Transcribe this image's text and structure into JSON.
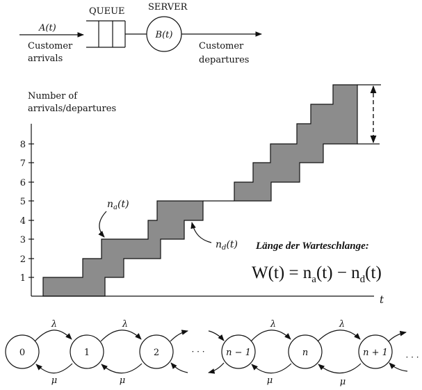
{
  "queue_diagram": {
    "arrival_label": "A(t)",
    "arrival_caption_1": "Customer",
    "arrival_caption_2": "arrivals",
    "queue_label": "QUEUE",
    "server_label": "SERVER",
    "server_symbol": "B(t)",
    "departure_caption_1": "Customer",
    "departure_caption_2": "departures"
  },
  "step_chart": {
    "ylabel_1": "Number of",
    "ylabel_2": "arrivals/departures",
    "xlabel": "t",
    "yticks": [
      "1",
      "2",
      "3",
      "4",
      "5",
      "6",
      "7",
      "8"
    ],
    "arrivals_label": "n",
    "arrivals_sub": "a",
    "arrivals_arg": "(t)",
    "departures_label": "n",
    "departures_sub": "d",
    "departures_arg": "(t)",
    "annotation_title": "Länge der Warteschlange:",
    "formula": "W(t) = n",
    "formula_sub_a": "a",
    "formula_mid": "(t) − n",
    "formula_sub_d": "d",
    "formula_end": "(t)",
    "fill_color": "#8c8c8c"
  },
  "birth_death_chain": {
    "states": [
      "0",
      "1",
      "2",
      "n − 1",
      "n",
      "n + 1"
    ],
    "ellipsis": "· · ·",
    "forward_rate": "λ",
    "backward_rate": "μ"
  }
}
